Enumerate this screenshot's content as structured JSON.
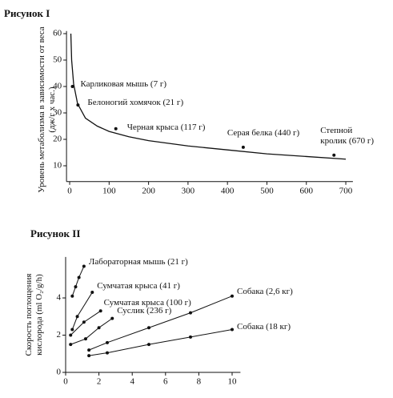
{
  "chart_data": [
    {
      "type": "line",
      "title": "Рисунок I",
      "y_label": "Уровень метаболизма в зависимости от веса (дж/г х час.)",
      "x": [
        3,
        5,
        10,
        20,
        40,
        70,
        100,
        150,
        200,
        300,
        400,
        500,
        600,
        700
      ],
      "values": [
        60,
        50,
        41,
        33.5,
        28,
        25,
        23,
        21,
        19.5,
        17.5,
        16,
        14.5,
        13.5,
        12.5
      ],
      "color": "#111",
      "points": [
        {
          "label": "Карликовая мышь (7 г)",
          "x": 7,
          "y": 40
        },
        {
          "label": "Белоногий хомячок (21 г)",
          "x": 21,
          "y": 33
        },
        {
          "label": "Черная крыса (117 г)",
          "x": 117,
          "y": 24
        },
        {
          "label": "Серая белка (440 г)",
          "x": 440,
          "y": 17
        },
        {
          "label": "Степной кролик (670 г)",
          "x": 670,
          "y": 14
        }
      ],
      "xlim": [
        -8,
        718
      ],
      "ylim": [
        4,
        61
      ],
      "xticks": [
        0,
        100,
        200,
        300,
        400,
        500,
        600,
        700
      ],
      "yticks": [
        10,
        20,
        30,
        40,
        50,
        60
      ]
    },
    {
      "type": "line",
      "title": "Рисунок II",
      "y_label": "Скорость поглощения кислорода (ml O₂/g/h)",
      "series": [
        {
          "name": "Лабораторная мышь (21 г)",
          "color": "#111",
          "x": [
            0.4,
            0.6,
            0.8,
            1.1
          ],
          "values": [
            4.1,
            4.6,
            5.1,
            5.7
          ]
        },
        {
          "name": "Сумчатая крыса (41 г)",
          "color": "#111",
          "x": [
            0.4,
            0.7,
            1.6
          ],
          "values": [
            2.3,
            3.0,
            4.3
          ]
        },
        {
          "name": "Сумчатая крыса (100 г)",
          "color": "#111",
          "x": [
            0.3,
            1.1,
            2.1
          ],
          "values": [
            2.0,
            2.7,
            3.3
          ]
        },
        {
          "name": "Суслик (236 г)",
          "color": "#111",
          "x": [
            0.3,
            1.2,
            2.0,
            2.8
          ],
          "values": [
            1.5,
            1.8,
            2.4,
            2.9
          ]
        },
        {
          "name": "Собака (2,6 кг)",
          "color": "#111",
          "x": [
            1.4,
            2.5,
            5,
            7.5,
            10
          ],
          "values": [
            1.2,
            1.6,
            2.4,
            3.2,
            4.1
          ]
        },
        {
          "name": "Собака (18 кг)",
          "color": "#111",
          "x": [
            1.4,
            2.5,
            5,
            7.5,
            10
          ],
          "values": [
            0.9,
            1.05,
            1.5,
            1.9,
            2.3
          ]
        }
      ],
      "xlim": [
        0,
        10.5
      ],
      "ylim": [
        0,
        6.2
      ],
      "xticks": [
        0,
        2,
        4,
        6,
        8,
        10
      ],
      "yticks": [
        0,
        2,
        4
      ]
    }
  ]
}
